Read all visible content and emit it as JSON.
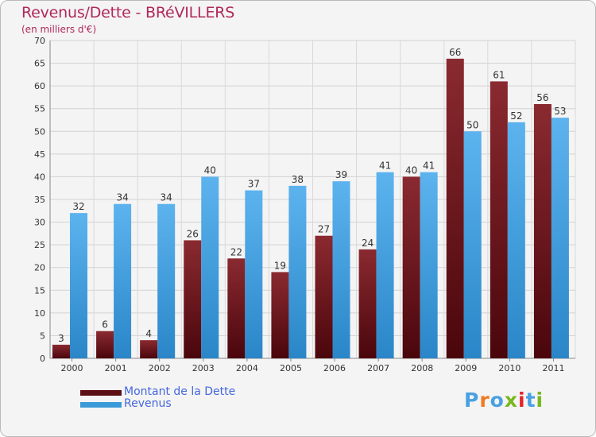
{
  "header": {
    "title": "Revenus/Dette - BRéVILLERS",
    "subtitle": "(en milliers d'€)"
  },
  "chart_data": {
    "type": "bar",
    "title": "Revenus/Dette - BRéVILLERS",
    "subtitle": "(en milliers d'€)",
    "xlabel": "",
    "ylabel": "",
    "categories": [
      "2000",
      "2001",
      "2002",
      "2003",
      "2004",
      "2005",
      "2006",
      "2007",
      "2008",
      "2009",
      "2010",
      "2011"
    ],
    "series": [
      {
        "name": "Montant de la Dette",
        "values": [
          3,
          6,
          4,
          26,
          22,
          19,
          27,
          24,
          40,
          66,
          61,
          56
        ],
        "color": "#7a1a22"
      },
      {
        "name": "Revenus",
        "values": [
          32,
          34,
          34,
          40,
          37,
          38,
          39,
          41,
          41,
          50,
          52,
          53
        ],
        "color": "#3a9ad8"
      }
    ],
    "ylim": [
      0,
      70
    ],
    "yticks": [
      0,
      5,
      10,
      15,
      20,
      25,
      30,
      35,
      40,
      45,
      50,
      55,
      60,
      65,
      70
    ],
    "grid": true,
    "data_labels": true,
    "legend_position": "bottom-left"
  },
  "legend": {
    "items": [
      {
        "label": "Montant de la Dette",
        "color": "#5c0f15"
      },
      {
        "label": "Revenus",
        "color": "#3a9ad8"
      }
    ]
  },
  "logo": {
    "text": "Proxiti",
    "colors": [
      "#4aa0e0",
      "#f07a20",
      "#4aa0e0",
      "#78b81e",
      "#e8222a",
      "#4aa0e0",
      "#78b81e"
    ]
  }
}
